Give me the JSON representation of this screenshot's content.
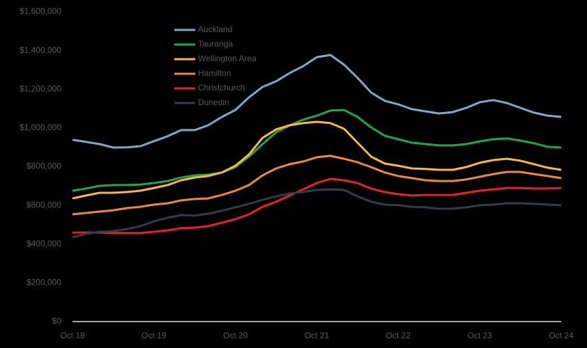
{
  "chart_data": {
    "type": "line",
    "categories": [
      "Oct 18",
      null,
      null,
      null,
      null,
      null,
      "Oct 19",
      null,
      null,
      null,
      null,
      null,
      "Oct 20",
      null,
      null,
      null,
      null,
      null,
      "Oct 21",
      null,
      null,
      null,
      null,
      null,
      "Oct 22",
      null,
      null,
      null,
      null,
      null,
      "Oct 23",
      null,
      null,
      null,
      null,
      null,
      "Oct 24"
    ],
    "series": [
      {
        "name": "Auckland",
        "color": "#7fa7c9",
        "values": [
          939000,
          928000,
          917000,
          899000,
          900000,
          906000,
          932000,
          957000,
          989000,
          989000,
          1014000,
          1057000,
          1093000,
          1158000,
          1212000,
          1241000,
          1284000,
          1320000,
          1366000,
          1377000,
          1327000,
          1259000,
          1183000,
          1140000,
          1122000,
          1097000,
          1086000,
          1075000,
          1082000,
          1104000,
          1133000,
          1144000,
          1129000,
          1104000,
          1079000,
          1064000,
          1057000
        ]
      },
      {
        "name": "Tauranga",
        "color": "#1fa64a",
        "values": [
          676000,
          687000,
          701000,
          705000,
          705000,
          708000,
          716000,
          726000,
          744000,
          755000,
          759000,
          770000,
          798000,
          852000,
          917000,
          978000,
          1014000,
          1043000,
          1064000,
          1090000,
          1093000,
          1057000,
          1003000,
          960000,
          942000,
          924000,
          917000,
          910000,
          910000,
          917000,
          931000,
          942000,
          946000,
          935000,
          921000,
          903000,
          899000
        ]
      },
      {
        "name": "Wellington Area",
        "color": "#f9b93d",
        "values": [
          636000,
          651000,
          665000,
          665000,
          669000,
          676000,
          690000,
          705000,
          730000,
          744000,
          752000,
          770000,
          805000,
          863000,
          949000,
          993000,
          1014000,
          1025000,
          1032000,
          1025000,
          996000,
          924000,
          852000,
          816000,
          805000,
          791000,
          788000,
          784000,
          784000,
          798000,
          820000,
          834000,
          841000,
          831000,
          813000,
          795000,
          784000
        ]
      },
      {
        "name": "Hamilton",
        "color": "#f0883a",
        "values": [
          554000,
          561000,
          568000,
          575000,
          586000,
          593000,
          604000,
          611000,
          626000,
          633000,
          636000,
          654000,
          676000,
          705000,
          755000,
          791000,
          813000,
          827000,
          849000,
          856000,
          841000,
          823000,
          798000,
          770000,
          752000,
          741000,
          730000,
          726000,
          726000,
          734000,
          748000,
          762000,
          773000,
          773000,
          762000,
          752000,
          741000
        ]
      },
      {
        "name": "Christchurch",
        "color": "#e8202a",
        "values": [
          460000,
          460000,
          460000,
          457000,
          457000,
          457000,
          464000,
          471000,
          482000,
          485000,
          493000,
          511000,
          529000,
          554000,
          593000,
          619000,
          651000,
          683000,
          716000,
          737000,
          730000,
          716000,
          687000,
          669000,
          658000,
          651000,
          654000,
          654000,
          654000,
          665000,
          676000,
          683000,
          690000,
          690000,
          687000,
          687000,
          690000
        ]
      },
      {
        "name": "Dunedin",
        "color": "#2f3f4a",
        "values": [
          435000,
          453000,
          464000,
          467000,
          478000,
          493000,
          518000,
          536000,
          550000,
          547000,
          557000,
          572000,
          590000,
          608000,
          629000,
          647000,
          662000,
          669000,
          680000,
          683000,
          680000,
          647000,
          619000,
          604000,
          601000,
          593000,
          590000,
          583000,
          583000,
          590000,
          601000,
          604000,
          611000,
          611000,
          608000,
          604000,
          601000
        ]
      }
    ],
    "ylim": [
      0,
      1600000
    ],
    "yticks": [
      {
        "value": 0,
        "label": "$0"
      },
      {
        "value": 200000,
        "label": "$200,000"
      },
      {
        "value": 400000,
        "label": "$400,000"
      },
      {
        "value": 600000,
        "label": "$600,000"
      },
      {
        "value": 800000,
        "label": "$800,000"
      },
      {
        "value": 1000000,
        "label": "$1,000,000"
      },
      {
        "value": 1200000,
        "label": "$1,200,000"
      },
      {
        "value": 1400000,
        "label": "$1,400,000"
      },
      {
        "value": 1600000,
        "label": "$1,600,000"
      }
    ],
    "legend": "top-left"
  }
}
